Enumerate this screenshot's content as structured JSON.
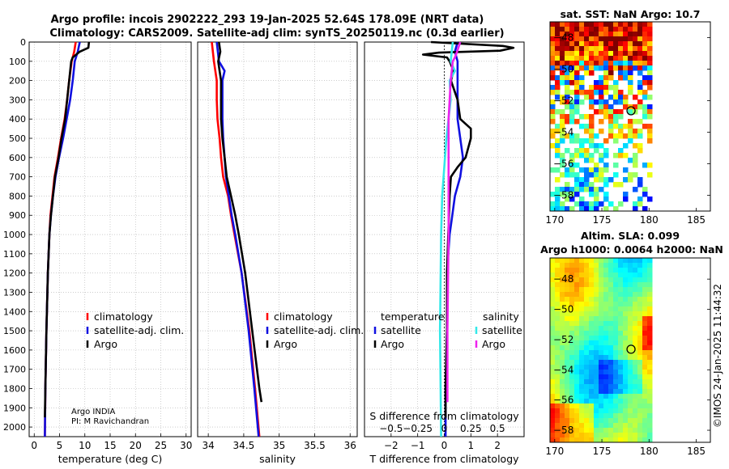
{
  "title": {
    "line1": "Argo profile: incois 2902222_293 19-Jan-2025 52.64S 178.09E (NRT data)",
    "line2": "Climatology: CARS2009. Satellite-adj clim: synTS_20250119.nc (0.3d earlier)"
  },
  "credit": "©IMOS 24-Jan-2025 11:44:32",
  "argo_info": {
    "line1": "Argo INDIA",
    "line2": "PI: M Ravichandran"
  },
  "colors": {
    "climatology": "#ff0000",
    "satellite": "#1010e0",
    "argo": "#000000",
    "sat_s": "#33e8e8",
    "argo_s": "#ee22ee"
  },
  "chart_data": [
    {
      "id": "temperature",
      "type": "line",
      "xlabel": "temperature (deg C)",
      "xlim": [
        -1,
        31
      ],
      "ylim": [
        2050,
        0
      ],
      "xticks": [
        0,
        5,
        10,
        15,
        20,
        25,
        30
      ],
      "yticks": [
        0,
        100,
        200,
        300,
        400,
        500,
        600,
        700,
        800,
        900,
        1000,
        1100,
        1200,
        1300,
        1400,
        1500,
        1600,
        1700,
        1800,
        1900,
        2000
      ],
      "legend": [
        "climatology",
        "satellite-adj. clim.",
        "Argo"
      ],
      "series": [
        {
          "name": "climatology",
          "color": "#ff0000",
          "depth": [
            0,
            50,
            100,
            200,
            300,
            400,
            500,
            600,
            700,
            800,
            900,
            1000,
            1200,
            1500,
            1800,
            2050
          ],
          "values": [
            8.2,
            7.9,
            7.4,
            6.9,
            6.5,
            6.0,
            5.3,
            4.7,
            4.0,
            3.6,
            3.2,
            3.0,
            2.7,
            2.4,
            2.2,
            2.1
          ]
        },
        {
          "name": "satellite-adj. clim.",
          "color": "#1010e0",
          "depth": [
            0,
            50,
            100,
            200,
            300,
            400,
            500,
            600,
            700,
            800,
            900,
            1000,
            1200,
            1500,
            1800,
            2050
          ],
          "values": [
            9.0,
            8.6,
            8.0,
            7.6,
            7.1,
            6.4,
            5.7,
            4.9,
            4.2,
            3.7,
            3.3,
            3.0,
            2.7,
            2.4,
            2.2,
            2.1
          ]
        },
        {
          "name": "Argo",
          "color": "#000000",
          "depth": [
            0,
            30,
            50,
            80,
            100,
            200,
            300,
            400,
            500,
            600,
            700,
            800,
            900,
            1000,
            1200,
            1500,
            1800,
            1950
          ],
          "values": [
            10.8,
            10.7,
            9.0,
            7.6,
            7.3,
            6.9,
            6.5,
            6.1,
            5.4,
            4.8,
            4.1,
            3.7,
            3.3,
            3.0,
            2.7,
            2.4,
            2.2,
            2.1
          ]
        }
      ]
    },
    {
      "id": "salinity",
      "type": "line",
      "xlabel": "salinity",
      "xlim": [
        33.85,
        36.1
      ],
      "ylim": [
        2050,
        0
      ],
      "xticks": [
        34,
        34.5,
        35,
        35.5,
        36
      ],
      "legend": [
        "climatology",
        "satellite-adj. clim.",
        "Argo"
      ],
      "series": [
        {
          "name": "climatology",
          "color": "#ff0000",
          "depth": [
            0,
            100,
            200,
            300,
            400,
            500,
            600,
            700,
            800,
            900,
            1000,
            1200,
            1500,
            1800,
            2050
          ],
          "values": [
            34.05,
            34.08,
            34.12,
            34.12,
            34.13,
            34.16,
            34.18,
            34.21,
            34.28,
            34.32,
            34.37,
            34.47,
            34.58,
            34.66,
            34.72
          ]
        },
        {
          "name": "satellite-adj. clim.",
          "color": "#1010e0",
          "depth": [
            0,
            100,
            150,
            200,
            300,
            400,
            500,
            600,
            700,
            800,
            900,
            1000,
            1200,
            1500,
            1800,
            2050
          ],
          "values": [
            34.12,
            34.15,
            34.23,
            34.2,
            34.2,
            34.2,
            34.21,
            34.23,
            34.25,
            34.29,
            34.33,
            34.38,
            34.47,
            34.57,
            34.65,
            34.71
          ]
        },
        {
          "name": "Argo",
          "color": "#000000",
          "depth": [
            0,
            50,
            100,
            150,
            200,
            300,
            400,
            500,
            600,
            700,
            800,
            900,
            1000,
            1200,
            1500,
            1800,
            1870
          ],
          "values": [
            34.15,
            34.17,
            34.14,
            34.16,
            34.18,
            34.18,
            34.18,
            34.2,
            34.23,
            34.26,
            34.32,
            34.38,
            34.43,
            34.52,
            34.62,
            34.72,
            34.75
          ]
        }
      ]
    },
    {
      "id": "difference",
      "type": "line",
      "xlabel": "T difference from climatology",
      "xlabel_top": "S difference from climatology",
      "xlim": [
        -3,
        3
      ],
      "ylim": [
        2050,
        0
      ],
      "xticks": [
        -2,
        -1,
        0,
        1,
        2
      ],
      "xticks_top": [
        -0.5,
        -0.25,
        0,
        0.25,
        0.5
      ],
      "legend_t_title": "temperature",
      "legend_s_title": "salinity",
      "legend_t": [
        "satellite",
        "Argo"
      ],
      "legend_s": [
        "satellite",
        "Argo"
      ],
      "series": [
        {
          "name": "T satellite",
          "color": "#1010e0",
          "depth": [
            0,
            50,
            100,
            200,
            300,
            400,
            500,
            600,
            700,
            800,
            900,
            1000,
            1200,
            1500,
            1800,
            2050
          ],
          "values": [
            0.5,
            0.4,
            0.5,
            0.5,
            0.5,
            0.5,
            0.6,
            0.7,
            0.6,
            0.4,
            0.3,
            0.2,
            0.1,
            0.1,
            0.05,
            0.05
          ]
        },
        {
          "name": "T Argo",
          "color": "#000000",
          "depth": [
            0,
            20,
            30,
            45,
            55,
            65,
            80,
            100,
            150,
            200,
            300,
            400,
            450,
            500,
            600,
            650,
            700,
            800,
            1000,
            1200,
            1500,
            1800,
            1950
          ],
          "values": [
            -0.5,
            2.2,
            2.6,
            2.1,
            -0.2,
            -0.8,
            0.1,
            0.2,
            0.35,
            0.25,
            0.5,
            0.6,
            1.0,
            1.0,
            0.8,
            0.5,
            0.25,
            0.2,
            0.15,
            0.1,
            0.1,
            0.05,
            0.05
          ]
        },
        {
          "name": "S satellite",
          "color": "#33e8e8",
          "depth": [
            0,
            100,
            150,
            200,
            300,
            500,
            800,
            1000,
            1500,
            2050
          ],
          "values": [
            0.08,
            0.06,
            0.1,
            0.05,
            0.06,
            0.02,
            -0.02,
            -0.03,
            -0.04,
            -0.03
          ]
        },
        {
          "name": "S Argo",
          "color": "#ee22ee",
          "depth": [
            0,
            50,
            80,
            100,
            200,
            300,
            400,
            500,
            700,
            1000,
            1500,
            1870
          ],
          "values": [
            0.15,
            0.12,
            0.1,
            0.08,
            0.06,
            0.05,
            0.04,
            0.04,
            0.04,
            0.04,
            0.03,
            0.03
          ]
        }
      ]
    },
    {
      "id": "sst_map",
      "type": "heatmap",
      "title": "sat. SST: NaN  Argo: 10.7",
      "xlim": [
        169.5,
        186.5
      ],
      "ylim": [
        -59,
        -47
      ],
      "xticks": [
        170,
        175,
        180,
        185
      ],
      "yticks": [
        -48,
        -50,
        -52,
        -54,
        -56,
        -58
      ],
      "argo_marker": [
        178.09,
        -52.64
      ]
    },
    {
      "id": "sla_map",
      "type": "heatmap",
      "title1": "Altim. SLA: 0.099",
      "title2": "Argo h1000: 0.0064 h2000: NaN",
      "xlim": [
        169.5,
        186.5
      ],
      "ylim": [
        -58.8,
        -46.6
      ],
      "xticks": [
        170,
        175,
        180,
        185
      ],
      "yticks": [
        -48,
        -50,
        -52,
        -54,
        -56,
        -58
      ],
      "argo_marker": [
        178.09,
        -52.64
      ]
    }
  ]
}
